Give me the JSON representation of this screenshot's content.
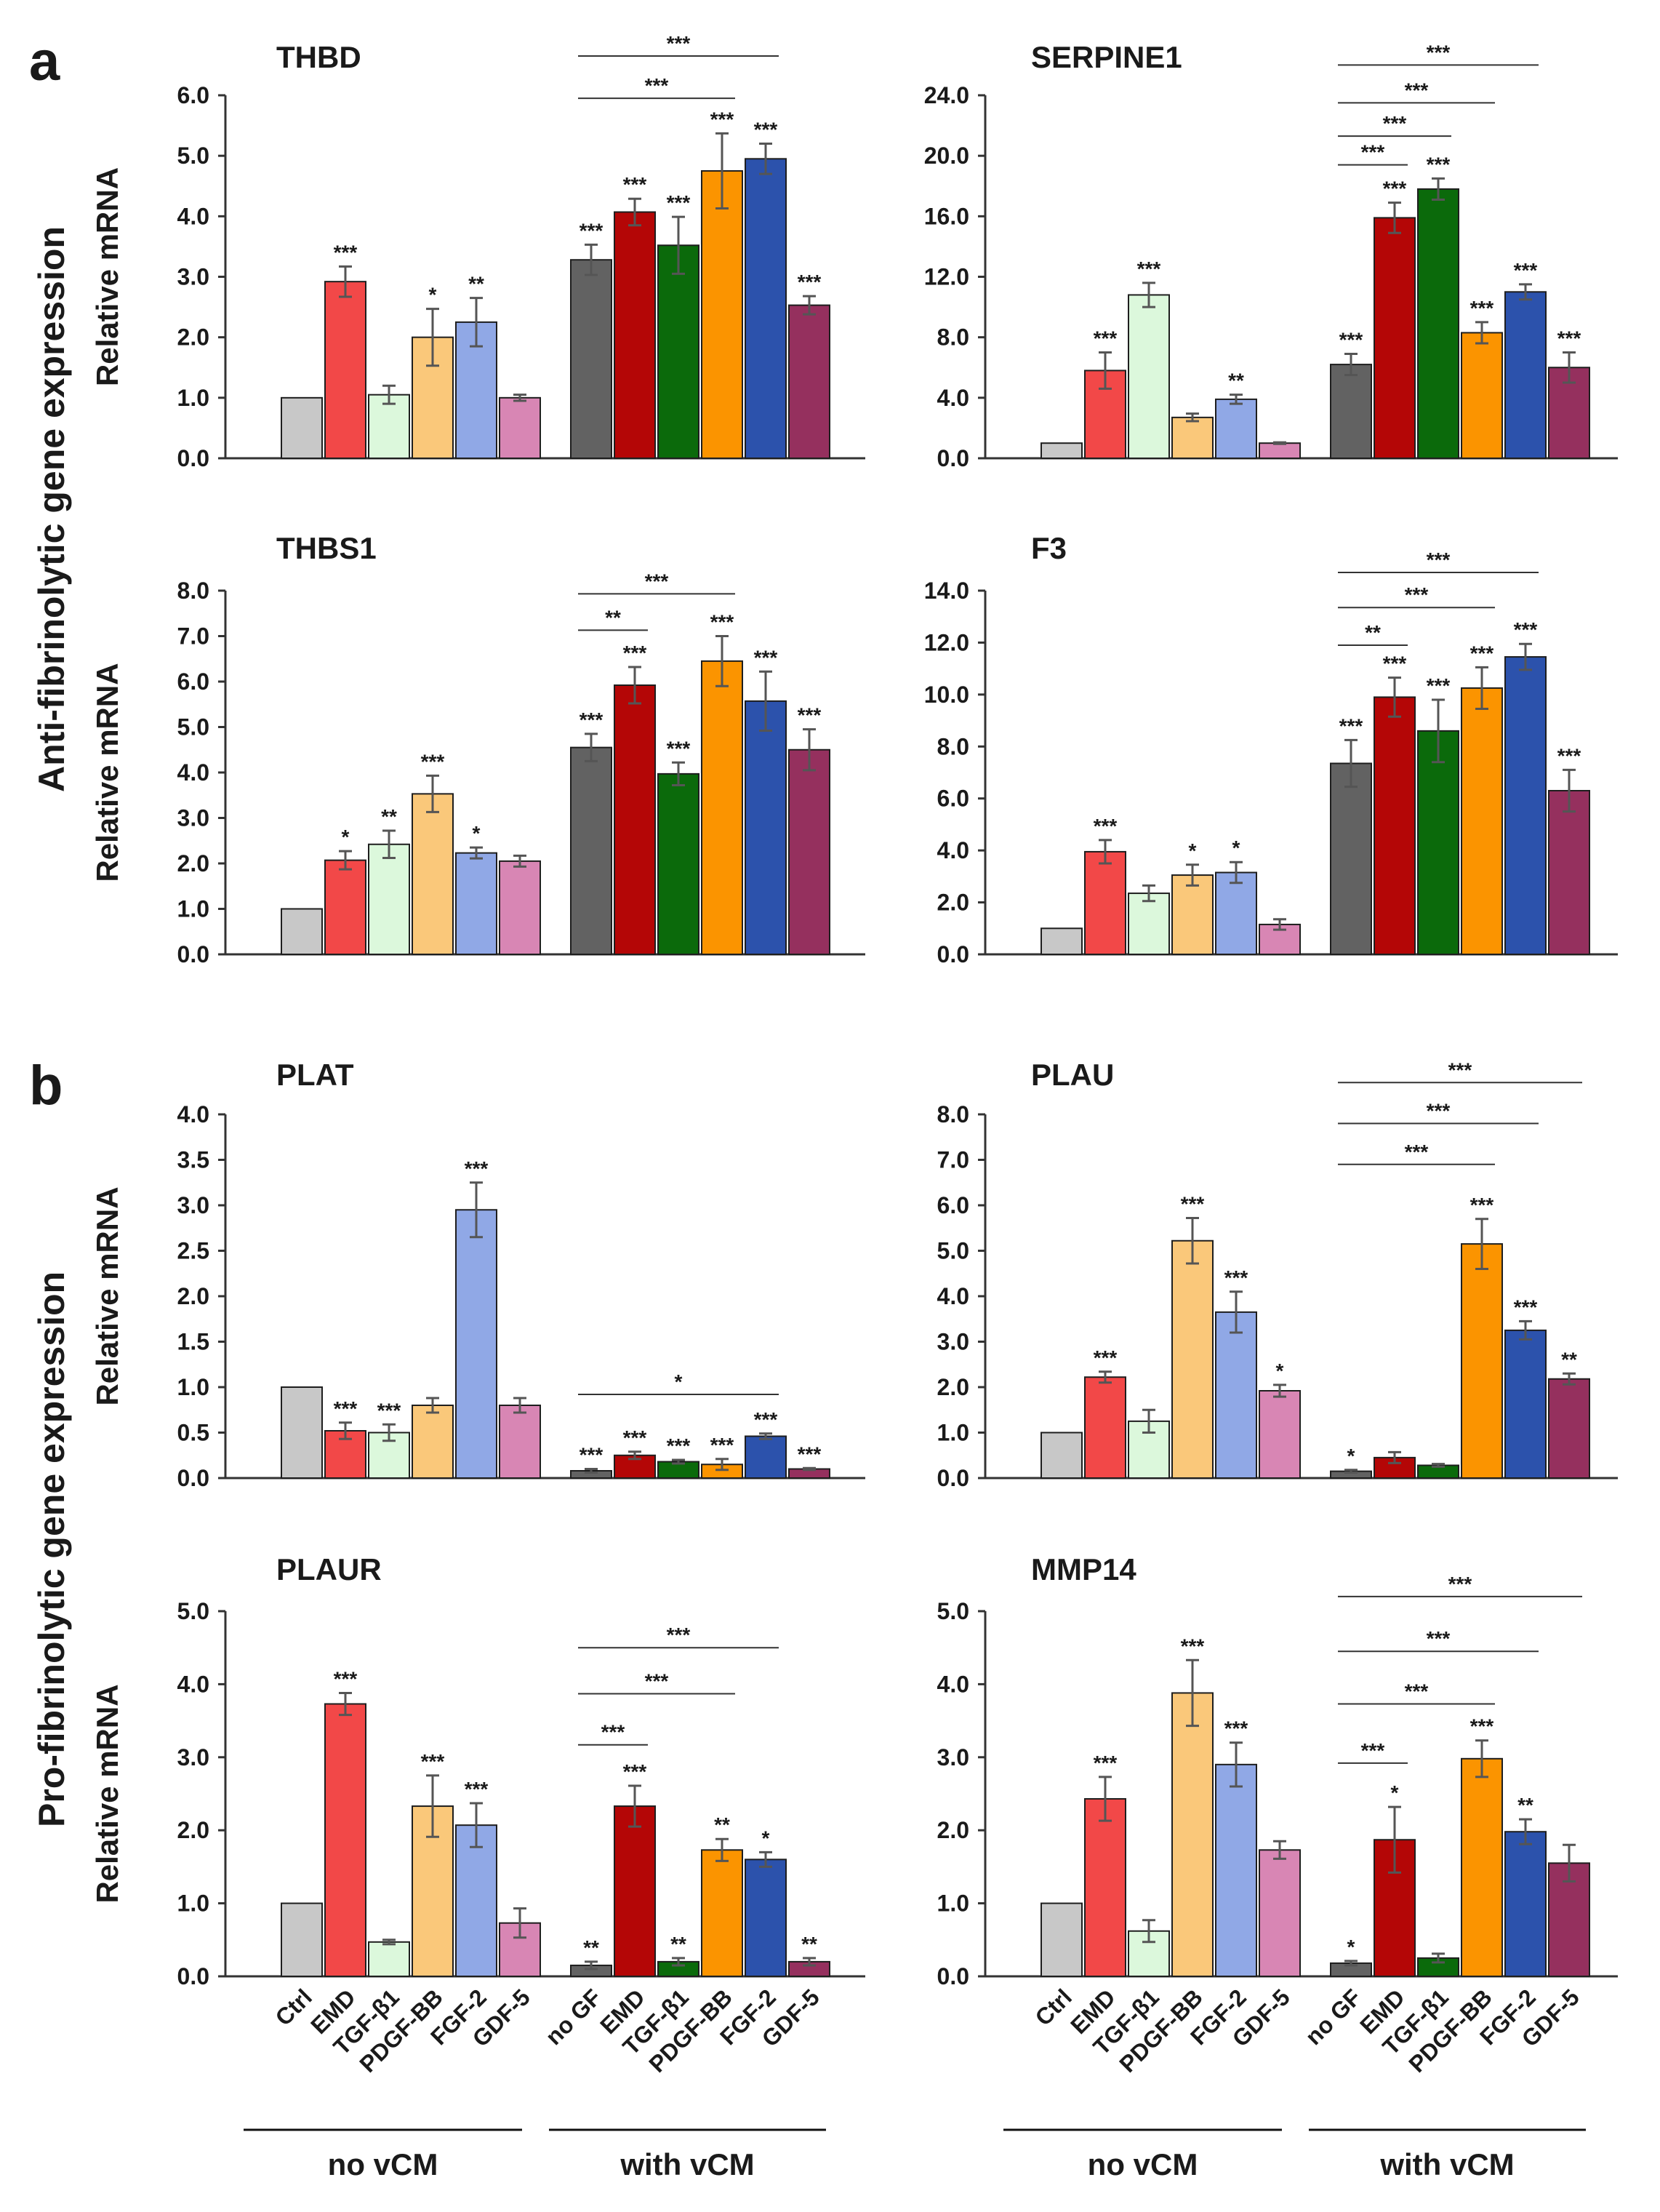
{
  "figure": {
    "panel_letters": [
      "a",
      "b"
    ],
    "side_labels": [
      "Anti-fibrinolytic gene expression",
      "Pro-fibrinolytic gene expression"
    ],
    "category_labels": [
      "Ctrl",
      "EMD",
      "TGF-β1",
      "PDGF-BB",
      "FGF-2",
      "GDF-5",
      "no GF",
      "EMD",
      "TGF-β1",
      "PDGF-BB",
      "FGF-2",
      "GDF-5"
    ],
    "group_labels": [
      "no vCM",
      "with vCM"
    ]
  },
  "colors": {
    "no_vcm": [
      "#c8c8c8",
      "#f24848",
      "#dcf8dc",
      "#fac87a",
      "#90a8e6",
      "#d886b4"
    ],
    "with_vcm": [
      "#626262",
      "#b40606",
      "#0b6a0b",
      "#fb9400",
      "#2c52ac",
      "#95305e"
    ]
  },
  "chart_data": [
    {
      "type": "bar",
      "title": "THBD",
      "ylabel": "Relative mRNA",
      "ylim": [
        0,
        6
      ],
      "yticks": [
        "0.0",
        "1.0",
        "2.0",
        "3.0",
        "4.0",
        "5.0",
        "6.0"
      ],
      "categories": [
        "Ctrl",
        "EMD",
        "TGF-β1",
        "PDGF-BB",
        "FGF-2",
        "GDF-5",
        "no GF",
        "EMD",
        "TGF-β1",
        "PDGF-BB",
        "FGF-2",
        "GDF-5"
      ],
      "values": [
        1.0,
        2.92,
        1.05,
        2.0,
        2.25,
        1.0,
        3.28,
        4.07,
        3.52,
        4.75,
        4.95,
        2.53
      ],
      "errors": [
        0,
        0.25,
        0.15,
        0.47,
        0.4,
        0.05,
        0.25,
        0.22,
        0.47,
        0.62,
        0.25,
        0.15
      ],
      "significance": [
        "",
        "***",
        "",
        "*",
        "**",
        "",
        "***",
        "***",
        "***",
        "***",
        "***",
        "***"
      ],
      "brackets": [
        {
          "from": 6,
          "to": 9,
          "label": "***",
          "y": 5.95
        },
        {
          "from": 6,
          "to": 10,
          "label": "***",
          "y": 6.65
        }
      ]
    },
    {
      "type": "bar",
      "title": "SERPINE1",
      "ylabel": "",
      "ylim": [
        0,
        24
      ],
      "yticks": [
        "0.0",
        "4.0",
        "8.0",
        "12.0",
        "16.0",
        "20.0",
        "24.0"
      ],
      "categories": [
        "Ctrl",
        "EMD",
        "TGF-β1",
        "PDGF-BB",
        "FGF-2",
        "GDF-5",
        "no GF",
        "EMD",
        "TGF-β1",
        "PDGF-BB",
        "FGF-2",
        "GDF-5"
      ],
      "values": [
        1.0,
        5.8,
        10.8,
        2.7,
        3.9,
        1.0,
        6.2,
        15.9,
        17.8,
        8.3,
        11.0,
        6.0
      ],
      "errors": [
        0,
        1.2,
        0.8,
        0.25,
        0.3,
        0.05,
        0.7,
        1.0,
        0.7,
        0.7,
        0.5,
        1.0
      ],
      "significance": [
        "",
        "***",
        "***",
        "",
        "**",
        "",
        "***",
        "***",
        "***",
        "***",
        "***",
        "***"
      ],
      "brackets": [
        {
          "from": 6,
          "to": 7,
          "label": "***",
          "y": 19.4
        },
        {
          "from": 6,
          "to": 8,
          "label": "***",
          "y": 21.3
        },
        {
          "from": 6,
          "to": 9,
          "label": "***",
          "y": 23.5
        },
        {
          "from": 6,
          "to": 10,
          "label": "***",
          "y": 26.0
        }
      ]
    },
    {
      "type": "bar",
      "title": "THBS1",
      "ylabel": "Relative mRNA",
      "ylim": [
        0,
        8
      ],
      "yticks": [
        "0.0",
        "1.0",
        "2.0",
        "3.0",
        "4.0",
        "5.0",
        "6.0",
        "7.0",
        "8.0"
      ],
      "categories": [
        "Ctrl",
        "EMD",
        "TGF-β1",
        "PDGF-BB",
        "FGF-2",
        "GDF-5",
        "no GF",
        "EMD",
        "TGF-β1",
        "PDGF-BB",
        "FGF-2",
        "GDF-5"
      ],
      "values": [
        1.0,
        2.07,
        2.42,
        3.53,
        2.23,
        2.05,
        4.55,
        5.92,
        3.97,
        6.45,
        5.57,
        4.5
      ],
      "errors": [
        0,
        0.2,
        0.3,
        0.4,
        0.12,
        0.12,
        0.3,
        0.4,
        0.25,
        0.55,
        0.65,
        0.45
      ],
      "significance": [
        "",
        "*",
        "**",
        "***",
        "*",
        "",
        "***",
        "***",
        "***",
        "***",
        "***",
        "***"
      ],
      "brackets": [
        {
          "from": 6,
          "to": 7,
          "label": "**",
          "y": 7.13
        },
        {
          "from": 6,
          "to": 9,
          "label": "***",
          "y": 7.93
        }
      ]
    },
    {
      "type": "bar",
      "title": "F3",
      "ylabel": "",
      "ylim": [
        0,
        14
      ],
      "yticks": [
        "0.0",
        "2.0",
        "4.0",
        "6.0",
        "8.0",
        "10.0",
        "12.0",
        "14.0"
      ],
      "categories": [
        "Ctrl",
        "EMD",
        "TGF-β1",
        "PDGF-BB",
        "FGF-2",
        "GDF-5",
        "no GF",
        "EMD",
        "TGF-β1",
        "PDGF-BB",
        "FGF-2",
        "GDF-5"
      ],
      "values": [
        1.0,
        3.95,
        2.35,
        3.05,
        3.15,
        1.15,
        7.35,
        9.9,
        8.6,
        10.25,
        11.45,
        6.3
      ],
      "errors": [
        0,
        0.45,
        0.3,
        0.4,
        0.4,
        0.2,
        0.9,
        0.75,
        1.2,
        0.8,
        0.5,
        0.8
      ],
      "significance": [
        "",
        "***",
        "",
        "*",
        "*",
        "",
        "***",
        "***",
        "***",
        "***",
        "***",
        "***"
      ],
      "brackets": [
        {
          "from": 6,
          "to": 7,
          "label": "**",
          "y": 11.9
        },
        {
          "from": 6,
          "to": 9,
          "label": "***",
          "y": 13.35
        },
        {
          "from": 6,
          "to": 10,
          "label": "***",
          "y": 14.7
        }
      ]
    },
    {
      "type": "bar",
      "title": "PLAT",
      "ylabel": "Relative mRNA",
      "ylim": [
        0,
        4
      ],
      "yticks": [
        "0.0",
        "0.5",
        "1.0",
        "1.5",
        "2.0",
        "2.5",
        "3.0",
        "3.5",
        "4.0"
      ],
      "categories": [
        "Ctrl",
        "EMD",
        "TGF-β1",
        "PDGF-BB",
        "FGF-2",
        "GDF-5",
        "no GF",
        "EMD",
        "TGF-β1",
        "PDGF-BB",
        "FGF-2",
        "GDF-5"
      ],
      "values": [
        1.0,
        0.52,
        0.5,
        0.8,
        2.95,
        0.8,
        0.08,
        0.25,
        0.18,
        0.15,
        0.46,
        0.1
      ],
      "errors": [
        0,
        0.09,
        0.09,
        0.08,
        0.3,
        0.08,
        0.02,
        0.04,
        0.02,
        0.06,
        0.03,
        0.01
      ],
      "significance": [
        "",
        "***",
        "***",
        "",
        "***",
        "",
        "***",
        "***",
        "***",
        "***",
        "***",
        "***"
      ],
      "brackets": [
        {
          "from": 6,
          "to": 10,
          "label": "*",
          "y": 0.92
        }
      ]
    },
    {
      "type": "bar",
      "title": "PLAU",
      "ylabel": "",
      "ylim": [
        0,
        8
      ],
      "yticks": [
        "0.0",
        "1.0",
        "2.0",
        "3.0",
        "4.0",
        "5.0",
        "6.0",
        "7.0",
        "8.0"
      ],
      "categories": [
        "Ctrl",
        "EMD",
        "TGF-β1",
        "PDGF-BB",
        "FGF-2",
        "GDF-5",
        "no GF",
        "EMD",
        "TGF-β1",
        "PDGF-BB",
        "FGF-2",
        "GDF-5"
      ],
      "values": [
        1.0,
        2.22,
        1.25,
        5.22,
        3.65,
        1.92,
        0.15,
        0.45,
        0.28,
        5.15,
        3.25,
        2.18
      ],
      "errors": [
        0,
        0.12,
        0.25,
        0.5,
        0.45,
        0.13,
        0.03,
        0.12,
        0.03,
        0.55,
        0.2,
        0.12
      ],
      "significance": [
        "",
        "***",
        "",
        "***",
        "***",
        "*",
        "*",
        "",
        "",
        "***",
        "***",
        "**"
      ],
      "brackets": [
        {
          "from": 6,
          "to": 9,
          "label": "***",
          "y": 6.9
        },
        {
          "from": 6,
          "to": 10,
          "label": "***",
          "y": 7.8
        },
        {
          "from": 6,
          "to": 11,
          "label": "***",
          "y": 8.7
        }
      ]
    },
    {
      "type": "bar",
      "title": "PLAUR",
      "ylabel": "Relative mRNA",
      "ylim": [
        0,
        5
      ],
      "yticks": [
        "0.0",
        "1.0",
        "2.0",
        "3.0",
        "4.0",
        "5.0"
      ],
      "categories": [
        "Ctrl",
        "EMD",
        "TGF-β1",
        "PDGF-BB",
        "FGF-2",
        "GDF-5",
        "no GF",
        "EMD",
        "TGF-β1",
        "PDGF-BB",
        "FGF-2",
        "GDF-5"
      ],
      "values": [
        1.0,
        3.73,
        0.47,
        2.33,
        2.07,
        0.73,
        0.15,
        2.33,
        0.2,
        1.73,
        1.6,
        0.2
      ],
      "errors": [
        0,
        0.15,
        0.03,
        0.42,
        0.3,
        0.2,
        0.05,
        0.28,
        0.05,
        0.15,
        0.1,
        0.05
      ],
      "significance": [
        "",
        "***",
        "",
        "***",
        "***",
        "",
        "**",
        "***",
        "**",
        "**",
        "*",
        "**"
      ],
      "brackets": [
        {
          "from": 6,
          "to": 7,
          "label": "***",
          "y": 3.17
        },
        {
          "from": 6,
          "to": 9,
          "label": "***",
          "y": 3.87
        },
        {
          "from": 6,
          "to": 10,
          "label": "***",
          "y": 4.5
        }
      ]
    },
    {
      "type": "bar",
      "title": "MMP14",
      "ylabel": "",
      "ylim": [
        0,
        5
      ],
      "yticks": [
        "0.0",
        "1.0",
        "2.0",
        "3.0",
        "4.0",
        "5.0"
      ],
      "categories": [
        "Ctrl",
        "EMD",
        "TGF-β1",
        "PDGF-BB",
        "FGF-2",
        "GDF-5",
        "no GF",
        "EMD",
        "TGF-β1",
        "PDGF-BB",
        "FGF-2",
        "GDF-5"
      ],
      "values": [
        1.0,
        2.43,
        0.62,
        3.88,
        2.9,
        1.73,
        0.18,
        1.87,
        0.25,
        2.98,
        1.98,
        1.55
      ],
      "errors": [
        0,
        0.3,
        0.15,
        0.45,
        0.3,
        0.12,
        0.03,
        0.45,
        0.06,
        0.25,
        0.17,
        0.25
      ],
      "significance": [
        "",
        "***",
        "",
        "***",
        "***",
        "",
        "*",
        "*",
        "",
        "***",
        "**",
        ""
      ],
      "brackets": [
        {
          "from": 6,
          "to": 7,
          "label": "***",
          "y": 2.92
        },
        {
          "from": 6,
          "to": 9,
          "label": "***",
          "y": 3.73
        },
        {
          "from": 6,
          "to": 10,
          "label": "***",
          "y": 4.45
        },
        {
          "from": 6,
          "to": 11,
          "label": "***",
          "y": 5.2
        }
      ]
    }
  ]
}
